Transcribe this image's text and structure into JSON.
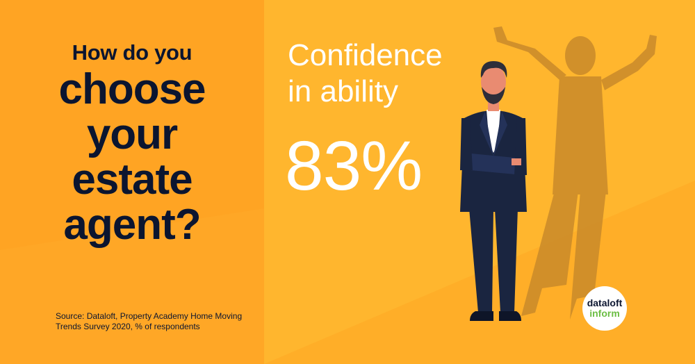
{
  "question": {
    "line1": "How do you",
    "line2": "choose",
    "line3": "your",
    "line4": "estate",
    "line5": "agent?"
  },
  "source": "Source: Dataloft, Property Academy Home Moving Trends Survey 2020, % of respondents",
  "stat": {
    "label_line1": "Confidence",
    "label_line2": "in ability",
    "value": "83%"
  },
  "logo": {
    "word1": "dataloft",
    "word2": "inform"
  },
  "colors": {
    "background": "#FFB62E",
    "left_panel": "#FFA726",
    "text_dark": "#0B1530",
    "text_light": "#FFFFFF",
    "suit": "#1A2540",
    "shadow": "#C98A2A",
    "logo_green": "#6CBE45"
  },
  "illustration": {
    "figure": "businessman-icon",
    "shadow": "triumphant-shadow-icon"
  }
}
